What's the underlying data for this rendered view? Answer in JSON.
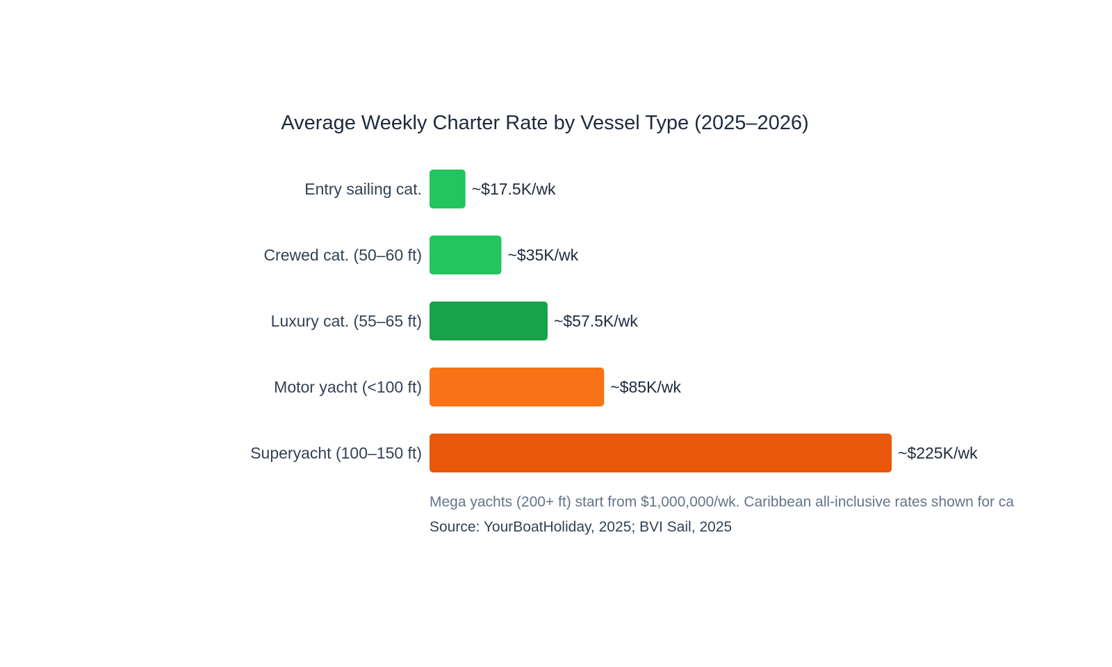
{
  "chart_data": {
    "type": "bar",
    "orientation": "horizontal",
    "title": "Average Weekly Charter Rate by Vessel Type (2025–2026)",
    "categories": [
      "Entry sailing cat.",
      "Crewed cat. (50–60 ft)",
      "Luxury cat. (55–65 ft)",
      "Motor yacht (<100 ft)",
      "Superyacht (100–150 ft)"
    ],
    "values": [
      17.5,
      35,
      57.5,
      85,
      225
    ],
    "unit": "K USD/wk",
    "data_labels": [
      "~$17.5K/wk",
      "~$35K/wk",
      "~$57.5K/wk",
      "~$85K/wk",
      "~$225K/wk"
    ],
    "colors": [
      "#22c55e",
      "#22c55e",
      "#16a34a",
      "#f97316",
      "#ea580c"
    ],
    "xlim": [
      0,
      225
    ],
    "grid": false,
    "axes_visible": false
  },
  "footnote": "Mega yachts (200+ ft) start from $1,000,000/wk. Caribbean all-inclusive rates shown for ca",
  "source": "Source: YourBoatHoliday, 2025; BVI Sail, 2025",
  "colors": {
    "title": "#1e293b",
    "label": "#334155",
    "note": "#64748b"
  }
}
